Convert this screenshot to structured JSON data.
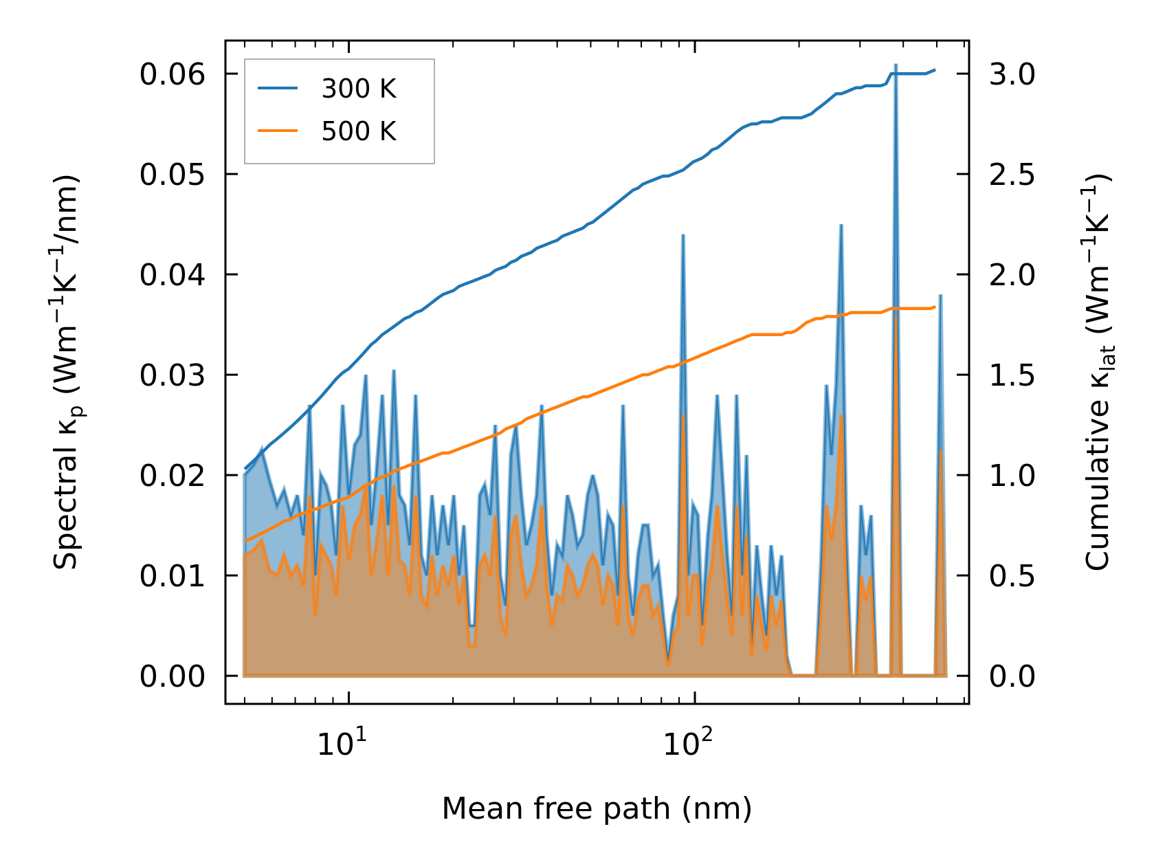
{
  "chart_data": {
    "type": "area",
    "x_scale": "log",
    "xlim": [
      4.4,
      620
    ],
    "ylim_left": [
      -0.0028,
      0.0633
    ],
    "ylim_right": [
      -0.14,
      3.165
    ],
    "xlabel": "Mean free path (nm)",
    "ylabel_left": {
      "base": "Spectral κ",
      "sub": "p",
      "paren": " (Wm",
      "sup1": "−1",
      "mid": "K",
      "sup2": "−1",
      "end": "/nm)"
    },
    "ylabel_right": {
      "base": "Cumulative κ",
      "sub": "lat",
      "paren": " (Wm",
      "sup1": "−1",
      "mid": "K",
      "sup2": "−1",
      "end": ")"
    },
    "x_ticks": [
      {
        "value": 10,
        "base": "10",
        "exp": "1"
      },
      {
        "value": 100,
        "base": "10",
        "exp": "2"
      }
    ],
    "y_ticks_left": [
      "0.00",
      "0.01",
      "0.02",
      "0.03",
      "0.04",
      "0.05",
      "0.06"
    ],
    "y_ticks_right": [
      "0.0",
      "0.5",
      "1.0",
      "1.5",
      "2.0",
      "2.5",
      "3.0"
    ],
    "legend": {
      "position": "upper-left",
      "entries": [
        "300 K",
        "500 K"
      ]
    },
    "colors": {
      "300 K": "#1f77b4",
      "500 K": "#ff7f0e"
    },
    "x": [
      5.0,
      5.3,
      5.6,
      5.9,
      6.2,
      6.5,
      6.8,
      7.1,
      7.4,
      7.7,
      8.0,
      8.3,
      8.6,
      8.9,
      9.2,
      9.6,
      10.0,
      10.4,
      10.8,
      11.2,
      11.6,
      12.0,
      12.5,
      13.0,
      13.5,
      14.0,
      14.5,
      15.0,
      15.6,
      16.2,
      16.8,
      17.4,
      18.0,
      18.7,
      19.4,
      20.1,
      20.8,
      21.5,
      22.3,
      23.1,
      23.9,
      24.7,
      25.6,
      26.5,
      27.4,
      28.4,
      29.4,
      30.4,
      31.5,
      32.6,
      33.7,
      34.9,
      36.1,
      37.3,
      38.6,
      40.0,
      41.4,
      42.8,
      44.3,
      45.8,
      47.4,
      49.0,
      50.7,
      52.4,
      54.2,
      56.1,
      58.0,
      60.0,
      62.0,
      64.1,
      66.3,
      68.5,
      70.8,
      73.2,
      75.7,
      78.3,
      81.0,
      83.7,
      86.6,
      89.5,
      92.5,
      95.6,
      98.8,
      102,
      105,
      109,
      112,
      116,
      120,
      124,
      128,
      132,
      137,
      141,
      146,
      151,
      156,
      161,
      166,
      172,
      178,
      184,
      190,
      196,
      203,
      210,
      217,
      224,
      232,
      240,
      248,
      256,
      265,
      274,
      283,
      292,
      302,
      312,
      323,
      334,
      345,
      357,
      369,
      381,
      394,
      407,
      421,
      435,
      450,
      465,
      480,
      496,
      513,
      530
    ],
    "series": [
      {
        "name": "300 K",
        "spectral": [
          0.02,
          0.021,
          0.0225,
          0.0195,
          0.017,
          0.0185,
          0.016,
          0.018,
          0.014,
          0.027,
          0.01,
          0.02,
          0.019,
          0.017,
          0.012,
          0.027,
          0.018,
          0.023,
          0.024,
          0.03,
          0.015,
          0.02,
          0.028,
          0.015,
          0.0305,
          0.018,
          0.017,
          0.013,
          0.028,
          0.012,
          0.01,
          0.018,
          0.012,
          0.017,
          0.013,
          0.018,
          0.01,
          0.015,
          0.005,
          0.005,
          0.018,
          0.019,
          0.016,
          0.025,
          0.01,
          0.007,
          0.022,
          0.025,
          0.018,
          0.013,
          0.015,
          0.018,
          0.027,
          0.014,
          0.008,
          0.013,
          0.012,
          0.018,
          0.016,
          0.013,
          0.014,
          0.018,
          0.02,
          0.018,
          0.011,
          0.016,
          0.015,
          0.008,
          0.027,
          0.01,
          0.006,
          0.012,
          0.015,
          0.015,
          0.01,
          0.011,
          0.006,
          0.0015,
          0.006,
          0.008,
          0.044,
          0.01,
          0.017,
          0.016,
          0.005,
          0.014,
          0.018,
          0.028,
          0.02,
          0.012,
          0.006,
          0.028,
          0.01,
          0.022,
          0.003,
          0.013,
          0.008,
          0.004,
          0.013,
          0.008,
          0.012,
          0.002,
          0.0,
          0.0,
          0.0,
          0.0,
          0.0,
          0.0,
          0.012,
          0.029,
          0.022,
          0.029,
          0.045,
          0.014,
          0.0,
          0.0,
          0.017,
          0.012,
          0.016,
          0.0,
          0.0,
          0.0,
          0.0,
          0.061,
          0.0,
          0.0,
          0.0,
          0.0,
          0.0,
          0.0,
          0.0,
          0.0,
          0.038
        ],
        "cumulative": [
          1.03,
          1.07,
          1.11,
          1.15,
          1.18,
          1.21,
          1.24,
          1.27,
          1.3,
          1.33,
          1.36,
          1.39,
          1.42,
          1.45,
          1.48,
          1.51,
          1.53,
          1.56,
          1.59,
          1.62,
          1.65,
          1.67,
          1.7,
          1.72,
          1.74,
          1.76,
          1.78,
          1.79,
          1.81,
          1.82,
          1.84,
          1.86,
          1.88,
          1.9,
          1.91,
          1.92,
          1.94,
          1.95,
          1.96,
          1.97,
          1.98,
          1.99,
          2.0,
          2.02,
          2.03,
          2.04,
          2.06,
          2.07,
          2.09,
          2.1,
          2.11,
          2.13,
          2.14,
          2.15,
          2.16,
          2.17,
          2.19,
          2.2,
          2.21,
          2.22,
          2.23,
          2.25,
          2.26,
          2.28,
          2.3,
          2.32,
          2.34,
          2.36,
          2.38,
          2.4,
          2.42,
          2.43,
          2.45,
          2.46,
          2.47,
          2.48,
          2.49,
          2.49,
          2.5,
          2.51,
          2.52,
          2.54,
          2.56,
          2.57,
          2.58,
          2.6,
          2.62,
          2.63,
          2.65,
          2.67,
          2.69,
          2.71,
          2.73,
          2.74,
          2.75,
          2.75,
          2.76,
          2.76,
          2.76,
          2.77,
          2.78,
          2.78,
          2.78,
          2.78,
          2.78,
          2.79,
          2.8,
          2.82,
          2.84,
          2.86,
          2.88,
          2.9,
          2.9,
          2.91,
          2.92,
          2.93,
          2.93,
          2.94,
          2.94,
          2.94,
          2.94,
          2.95,
          3.0,
          3.0,
          3.0,
          3.0,
          3.0,
          3.0,
          3.0,
          3.0,
          3.01,
          3.02
        ]
      },
      {
        "name": "500 K",
        "spectral": [
          0.012,
          0.0125,
          0.0135,
          0.0105,
          0.01,
          0.012,
          0.01,
          0.011,
          0.009,
          0.018,
          0.006,
          0.013,
          0.012,
          0.011,
          0.008,
          0.017,
          0.0115,
          0.015,
          0.016,
          0.019,
          0.01,
          0.013,
          0.018,
          0.01,
          0.019,
          0.0115,
          0.011,
          0.008,
          0.018,
          0.008,
          0.007,
          0.012,
          0.008,
          0.011,
          0.009,
          0.012,
          0.007,
          0.01,
          0.003,
          0.003,
          0.011,
          0.012,
          0.01,
          0.016,
          0.006,
          0.004,
          0.014,
          0.016,
          0.011,
          0.008,
          0.009,
          0.011,
          0.017,
          0.009,
          0.005,
          0.008,
          0.0075,
          0.011,
          0.01,
          0.008,
          0.009,
          0.011,
          0.012,
          0.011,
          0.007,
          0.01,
          0.009,
          0.005,
          0.017,
          0.006,
          0.004,
          0.0075,
          0.009,
          0.009,
          0.006,
          0.007,
          0.004,
          0.001,
          0.004,
          0.005,
          0.026,
          0.006,
          0.01,
          0.01,
          0.003,
          0.009,
          0.011,
          0.017,
          0.012,
          0.0075,
          0.004,
          0.017,
          0.006,
          0.014,
          0.002,
          0.008,
          0.005,
          0.0025,
          0.008,
          0.005,
          0.0075,
          0.0015,
          0.0,
          0.0,
          0.0,
          0.0,
          0.0,
          0.0,
          0.0075,
          0.017,
          0.0135,
          0.017,
          0.026,
          0.009,
          0.0,
          0.0,
          0.01,
          0.0075,
          0.01,
          0.0,
          0.0,
          0.0,
          0.0,
          0.036,
          0.0,
          0.0,
          0.0,
          0.0,
          0.0,
          0.0,
          0.0,
          0.0,
          0.0225
        ],
        "cumulative": [
          0.67,
          0.69,
          0.71,
          0.73,
          0.75,
          0.77,
          0.78,
          0.8,
          0.81,
          0.82,
          0.83,
          0.84,
          0.85,
          0.86,
          0.87,
          0.88,
          0.89,
          0.91,
          0.93,
          0.95,
          0.96,
          0.98,
          0.99,
          1.0,
          1.02,
          1.03,
          1.04,
          1.05,
          1.06,
          1.07,
          1.08,
          1.09,
          1.1,
          1.11,
          1.11,
          1.12,
          1.13,
          1.14,
          1.15,
          1.16,
          1.17,
          1.18,
          1.19,
          1.2,
          1.21,
          1.23,
          1.24,
          1.25,
          1.26,
          1.28,
          1.29,
          1.3,
          1.31,
          1.32,
          1.33,
          1.34,
          1.35,
          1.36,
          1.37,
          1.38,
          1.39,
          1.39,
          1.4,
          1.41,
          1.42,
          1.43,
          1.44,
          1.45,
          1.46,
          1.47,
          1.48,
          1.49,
          1.5,
          1.5,
          1.51,
          1.52,
          1.53,
          1.54,
          1.54,
          1.55,
          1.56,
          1.57,
          1.58,
          1.59,
          1.6,
          1.61,
          1.62,
          1.63,
          1.64,
          1.65,
          1.66,
          1.67,
          1.68,
          1.69,
          1.7,
          1.7,
          1.7,
          1.7,
          1.7,
          1.7,
          1.7,
          1.71,
          1.71,
          1.72,
          1.74,
          1.76,
          1.77,
          1.78,
          1.78,
          1.79,
          1.79,
          1.79,
          1.8,
          1.8,
          1.81,
          1.81,
          1.81,
          1.81,
          1.81,
          1.81,
          1.81,
          1.82,
          1.83,
          1.83,
          1.83,
          1.83,
          1.83,
          1.83,
          1.83,
          1.83,
          1.83,
          1.84
        ]
      }
    ]
  }
}
